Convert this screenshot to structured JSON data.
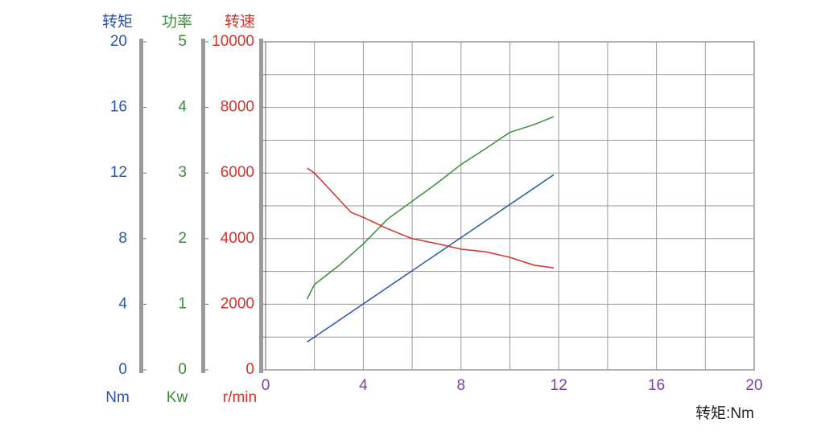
{
  "chart_data": {
    "type": "line",
    "x_label": "转矩:Nm",
    "xlim": [
      0,
      20
    ],
    "xticks": [
      0,
      4,
      8,
      12,
      16,
      20
    ],
    "x_minor_ticks": [
      2,
      6,
      10,
      14,
      18
    ],
    "x_color": "#7b3f9e",
    "axes": [
      {
        "title": "转矩",
        "unit": "Nm",
        "color": "#2b55a8",
        "lim": [
          0,
          20
        ],
        "ticks": [
          0,
          4,
          8,
          12,
          16,
          20
        ]
      },
      {
        "title": "功率",
        "unit": "Kw",
        "color": "#3d8b3d",
        "lim": [
          0,
          5
        ],
        "ticks": [
          0,
          1,
          2,
          3,
          4,
          5
        ]
      },
      {
        "title": "转速",
        "unit": "r/min",
        "color": "#d1332b",
        "lim": [
          0,
          10000
        ],
        "ticks": [
          0,
          2000,
          4000,
          6000,
          8000,
          10000
        ],
        "minor_ticks": [
          1000,
          3000,
          5000,
          7000,
          9000
        ]
      }
    ],
    "grid": true,
    "series": [
      {
        "axis": 0,
        "color": "#2b55a8",
        "x": [
          1.7,
          11.8
        ],
        "values": [
          1.7,
          11.9
        ]
      },
      {
        "axis": 1,
        "color": "#3d8b3d",
        "x": [
          1.7,
          2,
          3,
          4,
          5,
          6,
          7,
          8,
          9,
          10,
          11,
          11.8
        ],
        "values": [
          1.08,
          1.3,
          1.59,
          1.92,
          2.3,
          2.57,
          2.84,
          3.13,
          3.37,
          3.62,
          3.74,
          3.86
        ]
      },
      {
        "axis": 2,
        "color": "#d1332b",
        "x": [
          1.7,
          2,
          3.5,
          4,
          5,
          6,
          7,
          8,
          9,
          10,
          11,
          11.8
        ],
        "values": [
          6150,
          6000,
          4800,
          4650,
          4300,
          4000,
          3850,
          3680,
          3600,
          3430,
          3190,
          3110
        ]
      }
    ]
  }
}
